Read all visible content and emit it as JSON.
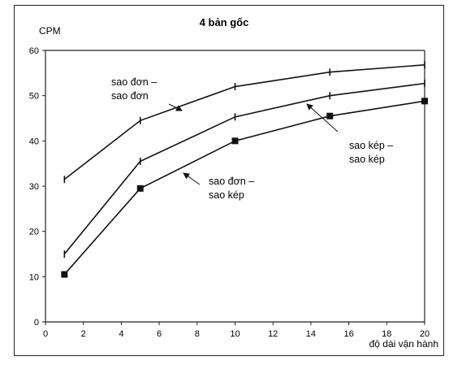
{
  "chart_data": {
    "type": "line",
    "title": "4 bản gốc",
    "ylabel": "CPM",
    "xlabel": "độ dài vận hành",
    "xlim": [
      0,
      20
    ],
    "ylim": [
      0,
      60
    ],
    "xticks": [
      0,
      2,
      4,
      6,
      8,
      10,
      12,
      14,
      16,
      18,
      20
    ],
    "yticks": [
      0,
      10,
      20,
      30,
      40,
      50,
      60
    ],
    "grid": false,
    "series": [
      {
        "name": "sao đơn – sao đơn",
        "label_lines": [
          "sao đơn –",
          "sao đơn"
        ],
        "marker": "tick",
        "x": [
          1,
          5,
          10,
          15,
          20
        ],
        "y": [
          31.5,
          44.5,
          52,
          55.2,
          56.8
        ]
      },
      {
        "name": "sao kép – sao kép",
        "label_lines": [
          "sao kép –",
          "sao kép"
        ],
        "marker": "tick",
        "x": [
          1,
          5,
          10,
          15,
          20
        ],
        "y": [
          15,
          35.5,
          45.3,
          50,
          52.7
        ]
      },
      {
        "name": "sao đơn – sao kép",
        "label_lines": [
          "sao đơn –",
          "sao kép"
        ],
        "marker": "square",
        "x": [
          1,
          5,
          10,
          15,
          20
        ],
        "y": [
          10.5,
          29.5,
          40,
          45.5,
          48.8
        ]
      }
    ]
  }
}
